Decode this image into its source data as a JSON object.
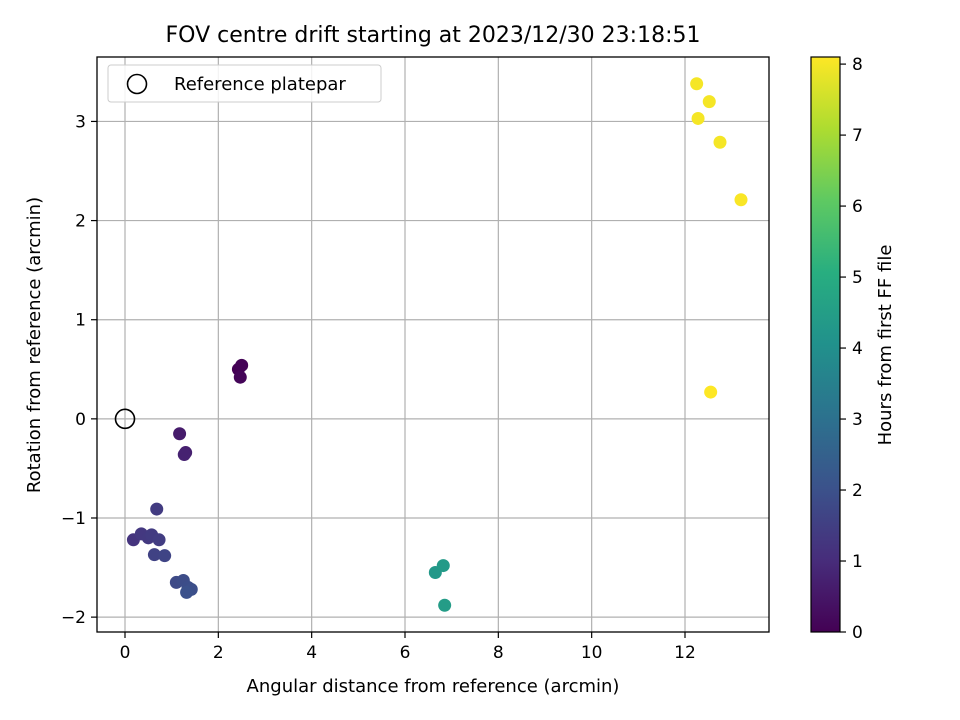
{
  "chart_data": {
    "type": "scatter",
    "title": "FOV centre drift starting at 2023/12/30 23:18:51",
    "xlabel": "Angular distance from reference (arcmin)",
    "ylabel": "Rotation from reference (arcmin)",
    "xlim": [
      -0.6,
      13.8
    ],
    "ylim": [
      -2.15,
      3.65
    ],
    "xticks": [
      0,
      2,
      4,
      6,
      8,
      10,
      12
    ],
    "xtick_labels": [
      "0",
      "2",
      "4",
      "6",
      "8",
      "10",
      "12"
    ],
    "yticks": [
      -2,
      -1,
      0,
      1,
      2,
      3
    ],
    "ytick_labels": [
      "−2",
      "−1",
      "0",
      "1",
      "2",
      "3"
    ],
    "grid": true,
    "legend": {
      "placement": "top-left",
      "entries": [
        "Reference platepar"
      ]
    },
    "reference_point": {
      "x": 0,
      "y": 0,
      "label": "Reference platepar"
    },
    "colorbar": {
      "label": "Hours from first FF file",
      "range": [
        0,
        8.1
      ],
      "ticks": [
        0,
        1,
        2,
        3,
        4,
        5,
        6,
        7,
        8
      ],
      "tick_labels": [
        "0",
        "1",
        "2",
        "3",
        "4",
        "5",
        "6",
        "7",
        "8"
      ],
      "colormap": "viridis"
    },
    "points": [
      {
        "x": 2.43,
        "y": 0.5,
        "hours": 0.0
      },
      {
        "x": 2.5,
        "y": 0.54,
        "hours": 0.05
      },
      {
        "x": 2.47,
        "y": 0.42,
        "hours": 0.1
      },
      {
        "x": 1.17,
        "y": -0.15,
        "hours": 0.6
      },
      {
        "x": 1.3,
        "y": -0.34,
        "hours": 0.7
      },
      {
        "x": 1.27,
        "y": -0.36,
        "hours": 0.75
      },
      {
        "x": 0.68,
        "y": -0.91,
        "hours": 1.4
      },
      {
        "x": 0.18,
        "y": -1.22,
        "hours": 1.2
      },
      {
        "x": 0.35,
        "y": -1.16,
        "hours": 1.3
      },
      {
        "x": 0.5,
        "y": -1.2,
        "hours": 1.35
      },
      {
        "x": 0.57,
        "y": -1.17,
        "hours": 1.4
      },
      {
        "x": 0.73,
        "y": -1.22,
        "hours": 1.45
      },
      {
        "x": 0.63,
        "y": -1.37,
        "hours": 1.6
      },
      {
        "x": 0.85,
        "y": -1.38,
        "hours": 1.65
      },
      {
        "x": 1.1,
        "y": -1.65,
        "hours": 1.8
      },
      {
        "x": 1.25,
        "y": -1.63,
        "hours": 1.85
      },
      {
        "x": 1.35,
        "y": -1.7,
        "hours": 1.9
      },
      {
        "x": 1.42,
        "y": -1.72,
        "hours": 1.95
      },
      {
        "x": 1.32,
        "y": -1.75,
        "hours": 2.0
      },
      {
        "x": 6.65,
        "y": -1.55,
        "hours": 4.3
      },
      {
        "x": 6.82,
        "y": -1.48,
        "hours": 4.35
      },
      {
        "x": 6.85,
        "y": -1.88,
        "hours": 4.45
      },
      {
        "x": 12.25,
        "y": 3.38,
        "hours": 8.0
      },
      {
        "x": 12.52,
        "y": 3.2,
        "hours": 8.0
      },
      {
        "x": 12.28,
        "y": 3.03,
        "hours": 8.0
      },
      {
        "x": 12.75,
        "y": 2.79,
        "hours": 8.0
      },
      {
        "x": 13.2,
        "y": 2.21,
        "hours": 8.05
      },
      {
        "x": 12.55,
        "y": 0.27,
        "hours": 8.1
      }
    ]
  }
}
